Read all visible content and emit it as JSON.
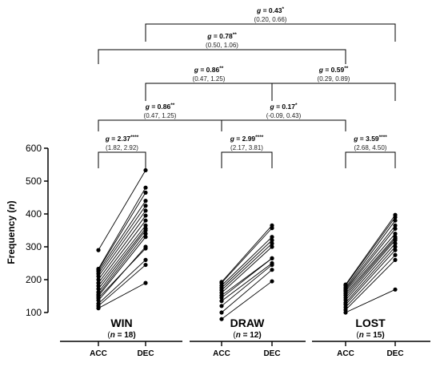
{
  "chart_data": {
    "type": "paired-dot-line",
    "ylabel": "Frequency (n)",
    "ylim": [
      80,
      600
    ],
    "yticks": [
      100,
      200,
      300,
      400,
      500,
      600
    ],
    "conditions": [
      "ACC",
      "DEC"
    ],
    "groups": [
      {
        "name": "WIN",
        "n_label": "(n = 18)",
        "pairs": [
          [
            113,
            190
          ],
          [
            120,
            245
          ],
          [
            127,
            260
          ],
          [
            137,
            300
          ],
          [
            144,
            295
          ],
          [
            150,
            330
          ],
          [
            155,
            340
          ],
          [
            162,
            350
          ],
          [
            172,
            356
          ],
          [
            181,
            365
          ],
          [
            190,
            380
          ],
          [
            200,
            395
          ],
          [
            210,
            410
          ],
          [
            218,
            425
          ],
          [
            225,
            440
          ],
          [
            230,
            465
          ],
          [
            233,
            480
          ],
          [
            290,
            533
          ]
        ]
      },
      {
        "name": "DRAW",
        "n_label": "(n = 12)",
        "pairs": [
          [
            80,
            195
          ],
          [
            100,
            230
          ],
          [
            120,
            245
          ],
          [
            135,
            250
          ],
          [
            145,
            265
          ],
          [
            152,
            265
          ],
          [
            160,
            300
          ],
          [
            168,
            310
          ],
          [
            175,
            320
          ],
          [
            182,
            330
          ],
          [
            190,
            357
          ],
          [
            193,
            365
          ]
        ]
      },
      {
        "name": "LOST",
        "n_label": "(n = 15)",
        "pairs": [
          [
            100,
            170
          ],
          [
            108,
            260
          ],
          [
            116,
            275
          ],
          [
            124,
            290
          ],
          [
            130,
            300
          ],
          [
            138,
            310
          ],
          [
            145,
            320
          ],
          [
            152,
            325
          ],
          [
            158,
            330
          ],
          [
            164,
            340
          ],
          [
            168,
            355
          ],
          [
            172,
            365
          ],
          [
            176,
            380
          ],
          [
            182,
            390
          ],
          [
            185,
            397
          ]
        ]
      }
    ],
    "comparisons": [
      {
        "id": "win-acc-dec",
        "g": "g = 2.37",
        "stars": "****",
        "ci": "(1.82, 2.92)"
      },
      {
        "id": "draw-acc-dec",
        "g": "g = 2.99",
        "stars": "****",
        "ci": "(2.17, 3.81)"
      },
      {
        "id": "lost-acc-dec",
        "g": "g = 3.59",
        "stars": "****",
        "ci": "(2.68, 4.50)"
      },
      {
        "id": "win-draw-acc",
        "g": "g = 0.86",
        "stars": "**",
        "ci": "(0.47, 1.25)"
      },
      {
        "id": "draw-lost-acc",
        "g": "g = 0.17",
        "stars": "*",
        "ci": "(-0.09, 0.43)"
      },
      {
        "id": "win-draw-dec",
        "g": "g = 0.86",
        "stars": "**",
        "ci": "(0.47, 1.25)"
      },
      {
        "id": "draw-lost-dec",
        "g": "g = 0.59",
        "stars": "**",
        "ci": "(0.29, 0.89)"
      },
      {
        "id": "win-lost-acc",
        "g": "g = 0.78",
        "stars": "**",
        "ci": "(0.50, 1.06)"
      },
      {
        "id": "win-lost-dec",
        "g": "g = 0.43",
        "stars": "*",
        "ci": "(0.20, 0.66)"
      }
    ]
  }
}
